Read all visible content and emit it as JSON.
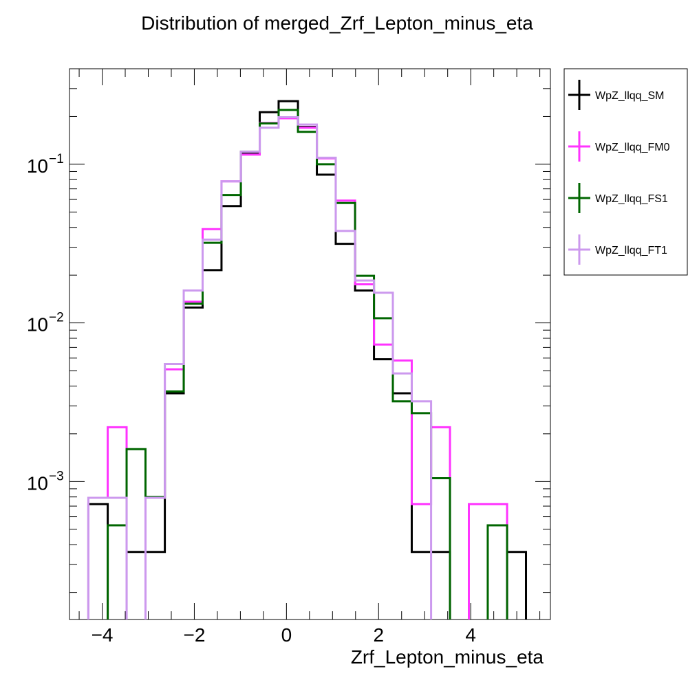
{
  "chart_data": {
    "type": "step",
    "title": "Distribution of merged_Zrf_Lepton_minus_eta",
    "xlabel": "Zrf_Lepton_minus_eta",
    "ylabel": "",
    "y_scale": "log",
    "xlim": [
      -4.71,
      5.73
    ],
    "ylim": [
      0.000135,
      0.4
    ],
    "x_tick_labels": [
      {
        "value": -4,
        "label": "−4"
      },
      {
        "value": -2,
        "label": "−2"
      },
      {
        "value": 0,
        "label": "0"
      },
      {
        "value": 2,
        "label": "2"
      },
      {
        "value": 4,
        "label": "4"
      }
    ],
    "y_tick_labels": [
      {
        "value": 0.1,
        "base": "10",
        "exp": "−1"
      },
      {
        "value": 0.01,
        "base": "10",
        "exp": "−2"
      },
      {
        "value": 0.001,
        "base": "10",
        "exp": "−3"
      }
    ],
    "grid": false,
    "legend_position": "right",
    "bin_edges": [
      -4.3,
      -3.88,
      -3.47,
      -3.06,
      -2.64,
      -2.23,
      -1.82,
      -1.41,
      -0.99,
      -0.58,
      -0.17,
      0.25,
      0.66,
      1.07,
      1.49,
      1.9,
      2.31,
      2.72,
      3.14,
      3.55,
      3.96,
      4.37,
      4.79,
      5.2
    ],
    "series": [
      {
        "name": "WpZ_llqq_SM",
        "color": "#000000",
        "values": [
          0.00072,
          0,
          0.00036,
          0.00036,
          0.0036,
          0.0125,
          0.0215,
          0.0545,
          0.118,
          0.213,
          0.25,
          0.172,
          0.086,
          0.0315,
          0.016,
          0.0059,
          0.0036,
          0.00036,
          0.00036,
          0,
          0,
          0,
          0.00036
        ]
      },
      {
        "name": "WpZ_llqq_FM0",
        "color": "#ff33ff",
        "values": [
          0.00079,
          0.0022,
          0,
          0.00079,
          0.0051,
          0.0136,
          0.039,
          0.078,
          0.115,
          0.182,
          0.195,
          0.17,
          0.109,
          0.059,
          0.0175,
          0.0073,
          0.0058,
          0.00072,
          0.0022,
          0,
          0.00072,
          0.00072,
          0
        ]
      },
      {
        "name": "WpZ_llqq_FS1",
        "color": "#006600",
        "values": [
          0,
          0.00053,
          0.0016,
          0.0008,
          0.0037,
          0.0132,
          0.032,
          0.064,
          0.12,
          0.181,
          0.22,
          0.16,
          0.1,
          0.057,
          0.0198,
          0.0107,
          0.0032,
          0.0027,
          0.00105,
          0,
          0,
          0.00053,
          0
        ]
      },
      {
        "name": "WpZ_llqq_FT1",
        "color": "#cc99ee",
        "values": [
          0.00079,
          0.00079,
          0,
          0.00079,
          0.0055,
          0.016,
          0.0335,
          0.078,
          0.12,
          0.17,
          0.198,
          0.178,
          0.11,
          0.038,
          0.0185,
          0.0155,
          0.0048,
          0.0032,
          0,
          0,
          0,
          0,
          0
        ]
      }
    ]
  }
}
